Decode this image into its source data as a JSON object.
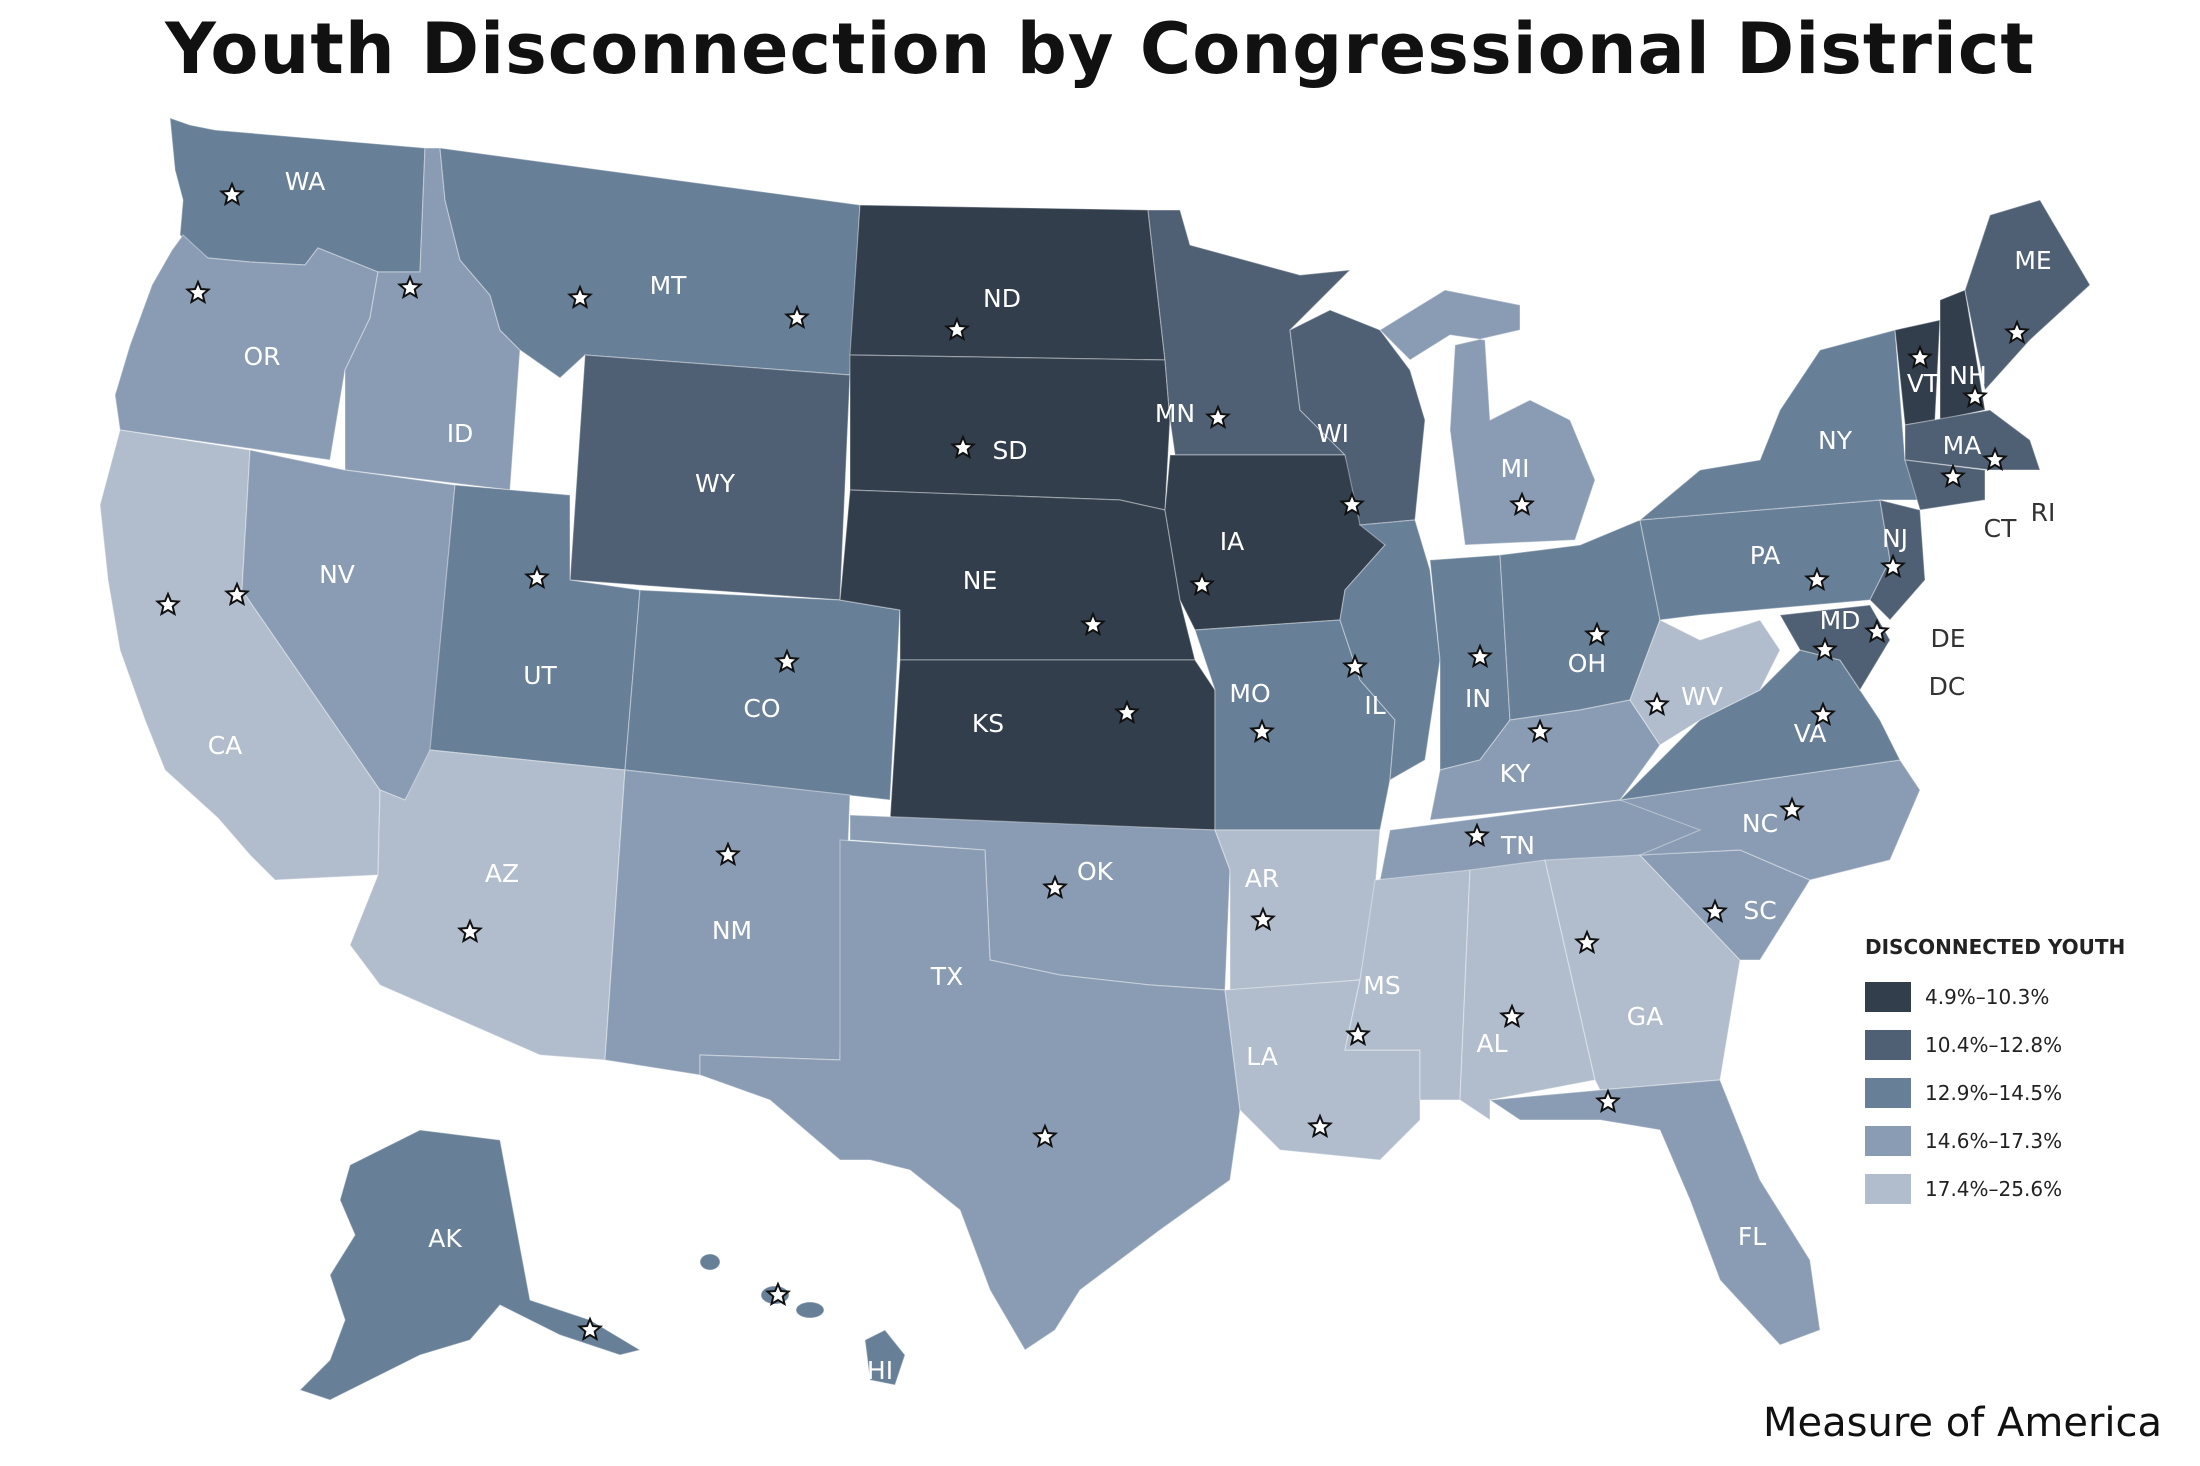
{
  "title": "Youth Disconnection by Congressional District",
  "credit": "Measure of America",
  "legend": {
    "title": "DISCONNECTED YOUTH",
    "items": [
      {
        "label": "4.9%–10.3%",
        "color": "#323e4c"
      },
      {
        "label": "10.4%–12.8%",
        "color": "#4f6075"
      },
      {
        "label": "12.9%–14.5%",
        "color": "#677f97"
      },
      {
        "label": "14.6%–17.3%",
        "color": "#8a9cb3"
      },
      {
        "label": "17.4%–25.6%",
        "color": "#b1bdcc"
      }
    ]
  },
  "states": [
    {
      "abbr": "WA",
      "bin": 2
    },
    {
      "abbr": "OR",
      "bin": 3
    },
    {
      "abbr": "CA",
      "bin": 4
    },
    {
      "abbr": "ID",
      "bin": 3
    },
    {
      "abbr": "NV",
      "bin": 3
    },
    {
      "abbr": "MT",
      "bin": 2
    },
    {
      "abbr": "WY",
      "bin": 1
    },
    {
      "abbr": "UT",
      "bin": 2
    },
    {
      "abbr": "AZ",
      "bin": 4
    },
    {
      "abbr": "CO",
      "bin": 2
    },
    {
      "abbr": "NM",
      "bin": 3
    },
    {
      "abbr": "ND",
      "bin": 0
    },
    {
      "abbr": "SD",
      "bin": 0
    },
    {
      "abbr": "NE",
      "bin": 0
    },
    {
      "abbr": "KS",
      "bin": 0
    },
    {
      "abbr": "OK",
      "bin": 3
    },
    {
      "abbr": "TX",
      "bin": 3
    },
    {
      "abbr": "MN",
      "bin": 1
    },
    {
      "abbr": "IA",
      "bin": 0
    },
    {
      "abbr": "MO",
      "bin": 2
    },
    {
      "abbr": "AR",
      "bin": 4
    },
    {
      "abbr": "LA",
      "bin": 4
    },
    {
      "abbr": "WI",
      "bin": 1
    },
    {
      "abbr": "IL",
      "bin": 2
    },
    {
      "abbr": "MI",
      "bin": 3
    },
    {
      "abbr": "IN",
      "bin": 2
    },
    {
      "abbr": "OH",
      "bin": 2
    },
    {
      "abbr": "KY",
      "bin": 3
    },
    {
      "abbr": "TN",
      "bin": 3
    },
    {
      "abbr": "MS",
      "bin": 4
    },
    {
      "abbr": "AL",
      "bin": 4
    },
    {
      "abbr": "GA",
      "bin": 4
    },
    {
      "abbr": "FL",
      "bin": 3
    },
    {
      "abbr": "SC",
      "bin": 3
    },
    {
      "abbr": "NC",
      "bin": 3
    },
    {
      "abbr": "VA",
      "bin": 2
    },
    {
      "abbr": "WV",
      "bin": 4
    },
    {
      "abbr": "PA",
      "bin": 2
    },
    {
      "abbr": "NY",
      "bin": 2
    },
    {
      "abbr": "VT",
      "bin": 0
    },
    {
      "abbr": "NH",
      "bin": 0
    },
    {
      "abbr": "ME",
      "bin": 1
    },
    {
      "abbr": "MA",
      "bin": 1
    },
    {
      "abbr": "NJ",
      "bin": 1
    },
    {
      "abbr": "MD",
      "bin": 1
    },
    {
      "abbr": "AK",
      "bin": 2
    },
    {
      "abbr": "HI",
      "bin": 2
    }
  ],
  "outside_labels": [
    "RI",
    "CT",
    "DE",
    "DC"
  ]
}
